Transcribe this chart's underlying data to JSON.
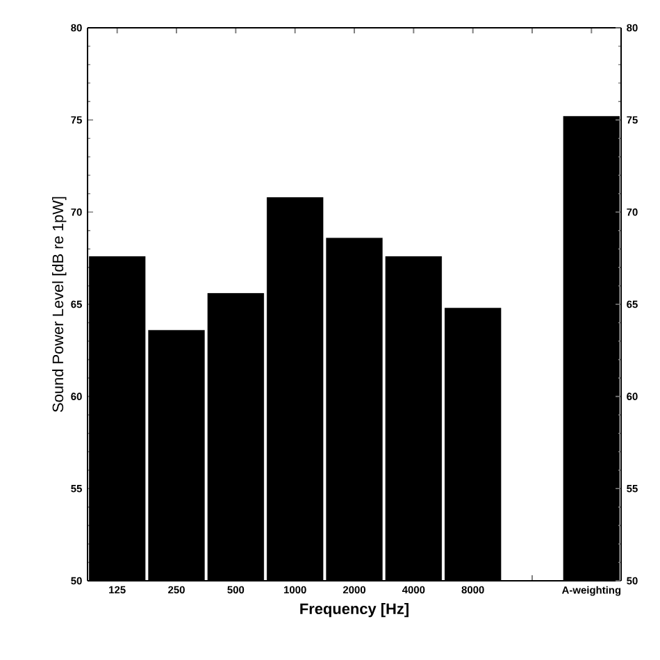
{
  "chart_data": {
    "type": "bar",
    "xlabel": "Frequency [Hz]",
    "ylabel": "Sound Power Level [dB re 1pW]",
    "categories": [
      "125",
      "250",
      "500",
      "1000",
      "2000",
      "4000",
      "8000",
      null,
      "A-weighting"
    ],
    "values": [
      67.6,
      63.6,
      65.6,
      70.8,
      68.6,
      67.6,
      64.8,
      null,
      75.2
    ],
    "color": "#000000",
    "ylim": [
      50,
      80
    ],
    "yticks": [
      50,
      55,
      60,
      65,
      70,
      75,
      80
    ],
    "y2lim": [
      50,
      80
    ],
    "y2ticks": [
      50,
      55,
      60,
      65,
      70,
      75,
      80
    ]
  }
}
